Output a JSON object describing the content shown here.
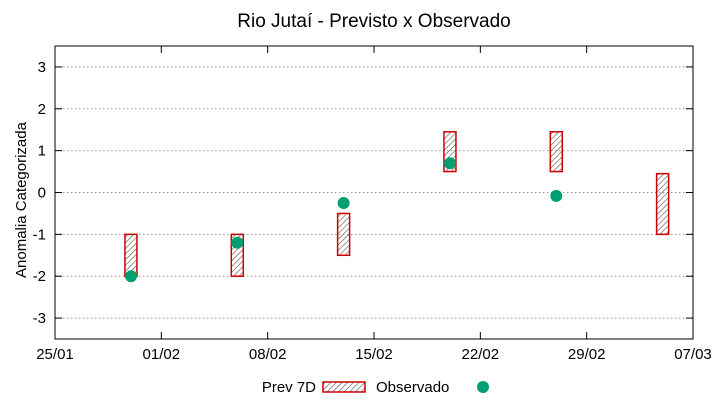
{
  "chart_data": {
    "type": "interval-scatter",
    "title": "Rio Jutaí - Previsto x Observado",
    "xlabel": "",
    "ylabel": "Anomalia Categorizada",
    "x_ticks": [
      "25/01",
      "01/02",
      "08/02",
      "15/02",
      "22/02",
      "29/02",
      "07/03"
    ],
    "x_range_days": [
      0,
      42
    ],
    "y_ticks": [
      3,
      2,
      1,
      0,
      -1,
      -2,
      -3
    ],
    "ylim": [
      -3.5,
      3.5
    ],
    "grid": true,
    "legend_position": "bottom",
    "series": [
      {
        "name": "Prev 7D",
        "kind": "range-box",
        "color": "#cc0000",
        "points": [
          {
            "day": 5.0,
            "low": -2.0,
            "high": -1.0
          },
          {
            "day": 12.0,
            "low": -2.0,
            "high": -1.0
          },
          {
            "day": 19.0,
            "low": -1.5,
            "high": -0.5
          },
          {
            "day": 26.0,
            "low": 0.5,
            "high": 1.45
          },
          {
            "day": 33.0,
            "low": 0.5,
            "high": 1.45
          },
          {
            "day": 40.0,
            "low": -1.0,
            "high": 0.45
          }
        ]
      },
      {
        "name": "Observado",
        "kind": "point",
        "color": "#009e73",
        "points": [
          {
            "day": 5.0,
            "value": -2.0
          },
          {
            "day": 12.0,
            "value": -1.2
          },
          {
            "day": 19.0,
            "value": -0.25
          },
          {
            "day": 26.0,
            "value": 0.7
          },
          {
            "day": 33.0,
            "value": -0.08
          }
        ]
      }
    ]
  }
}
